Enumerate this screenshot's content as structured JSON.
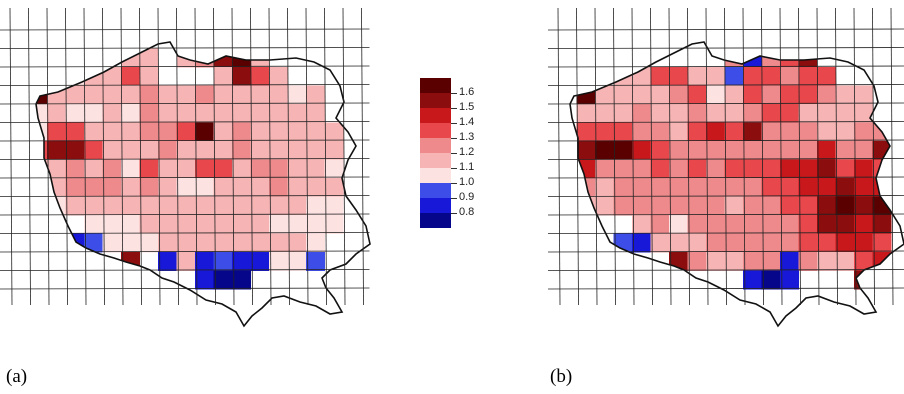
{
  "panels": [
    {
      "label": "(a)",
      "cells": [
        [
          0,
          0,
          0,
          0,
          0,
          0,
          0,
          0,
          0,
          0,
          0,
          0,
          0,
          0,
          0,
          0,
          0,
          0,
          0
        ],
        [
          0,
          0,
          0,
          0,
          0,
          0,
          2,
          2,
          0,
          2,
          3,
          6,
          7,
          2,
          0,
          0,
          0,
          0,
          0
        ],
        [
          0,
          0,
          0,
          1,
          2,
          2,
          4,
          2,
          0,
          0,
          0,
          2,
          6,
          4,
          2,
          0,
          0,
          0,
          0
        ],
        [
          0,
          7,
          2,
          2,
          2,
          2,
          2,
          3,
          2,
          2,
          3,
          2,
          2,
          2,
          2,
          1,
          2,
          0,
          0
        ],
        [
          0,
          1,
          2,
          1,
          1,
          2,
          1,
          3,
          2,
          2,
          2,
          2,
          2,
          2,
          2,
          2,
          2,
          0,
          0
        ],
        [
          0,
          1,
          4,
          4,
          2,
          2,
          2,
          3,
          3,
          4,
          7,
          2,
          3,
          2,
          2,
          2,
          2,
          2,
          0
        ],
        [
          0,
          4,
          6,
          6,
          4,
          2,
          2,
          2,
          3,
          2,
          2,
          2,
          3,
          2,
          2,
          2,
          2,
          2,
          0
        ],
        [
          0,
          2,
          2,
          3,
          2,
          3,
          1,
          4,
          2,
          2,
          4,
          4,
          2,
          3,
          3,
          2,
          2,
          1,
          0
        ],
        [
          0,
          2,
          2,
          3,
          3,
          3,
          2,
          3,
          2,
          1,
          1,
          2,
          2,
          2,
          3,
          2,
          2,
          2,
          0
        ],
        [
          0,
          1,
          1,
          2,
          2,
          2,
          2,
          2,
          2,
          2,
          2,
          2,
          2,
          2,
          2,
          2,
          1,
          1,
          0
        ],
        [
          0,
          0,
          0,
          0,
          1,
          1,
          1,
          2,
          2,
          2,
          2,
          2,
          2,
          2,
          1,
          1,
          1,
          1,
          0
        ],
        [
          0,
          0,
          0,
          -2,
          -1,
          1,
          1,
          1,
          2,
          2,
          2,
          2,
          2,
          2,
          2,
          2,
          1,
          0,
          0
        ],
        [
          0,
          0,
          0,
          0,
          0,
          0,
          6,
          0,
          -2,
          2,
          -2,
          -1,
          -2,
          -2,
          1,
          1,
          -1,
          0,
          0
        ],
        [
          0,
          0,
          0,
          0,
          0,
          0,
          0,
          0,
          0,
          0,
          -2,
          -3,
          -3,
          0,
          0,
          0,
          0,
          0,
          0
        ]
      ]
    },
    {
      "label": "(b)",
      "cells": [
        [
          0,
          0,
          0,
          0,
          0,
          0,
          0,
          0,
          0,
          0,
          0,
          0,
          0,
          0,
          0,
          0,
          0,
          0,
          0
        ],
        [
          0,
          0,
          0,
          0,
          0,
          0,
          0,
          0,
          0,
          3,
          -2,
          3,
          4,
          6,
          0,
          0,
          0,
          0,
          0
        ],
        [
          0,
          0,
          0,
          2,
          2,
          4,
          4,
          2,
          2,
          -1,
          4,
          4,
          3,
          4,
          4,
          0,
          0,
          0,
          0
        ],
        [
          0,
          7,
          2,
          2,
          2,
          2,
          3,
          4,
          1,
          2,
          4,
          3,
          4,
          4,
          3,
          2,
          2,
          0,
          0
        ],
        [
          0,
          2,
          2,
          2,
          3,
          2,
          2,
          3,
          2,
          2,
          3,
          4,
          4,
          2,
          2,
          2,
          2,
          0,
          0
        ],
        [
          0,
          4,
          4,
          4,
          3,
          3,
          2,
          4,
          5,
          4,
          6,
          3,
          3,
          3,
          2,
          2,
          3,
          3,
          0
        ],
        [
          0,
          6,
          7,
          7,
          5,
          4,
          3,
          3,
          3,
          3,
          3,
          3,
          3,
          3,
          5,
          3,
          3,
          6,
          0
        ],
        [
          0,
          5,
          3,
          3,
          3,
          4,
          3,
          4,
          3,
          4,
          4,
          4,
          5,
          5,
          6,
          4,
          5,
          4,
          0
        ],
        [
          0,
          3,
          2,
          3,
          3,
          3,
          3,
          3,
          3,
          3,
          3,
          4,
          4,
          5,
          5,
          6,
          5,
          5,
          0
        ],
        [
          0,
          2,
          2,
          3,
          3,
          3,
          3,
          3,
          3,
          2,
          3,
          3,
          4,
          4,
          6,
          7,
          6,
          7,
          0
        ],
        [
          0,
          0,
          0,
          0,
          2,
          3,
          1,
          3,
          3,
          3,
          3,
          3,
          3,
          4,
          6,
          6,
          5,
          6,
          0
        ],
        [
          0,
          0,
          0,
          -1,
          -2,
          2,
          2,
          2,
          3,
          3,
          3,
          3,
          3,
          4,
          4,
          5,
          5,
          4,
          0
        ],
        [
          0,
          0,
          0,
          0,
          0,
          0,
          6,
          3,
          2,
          2,
          3,
          3,
          -2,
          3,
          2,
          2,
          4,
          5,
          0
        ],
        [
          0,
          0,
          0,
          0,
          0,
          0,
          0,
          0,
          0,
          0,
          -2,
          -3,
          -2,
          0,
          0,
          0,
          6,
          7,
          0
        ]
      ]
    }
  ],
  "legend": {
    "entries": [
      {
        "label": "1.6",
        "color": "#5a0000"
      },
      {
        "label": "1.5",
        "color": "#8b0d0d"
      },
      {
        "label": "1.4",
        "color": "#c8181c"
      },
      {
        "label": "1.3",
        "color": "#e8484c"
      },
      {
        "label": "1.2",
        "color": "#ef8a8c"
      },
      {
        "label": "1.1",
        "color": "#f6b4b4"
      },
      {
        "label": "1.0",
        "color": "#fde2e2"
      },
      {
        "label": "0.9",
        "color": "#3d4de8"
      },
      {
        "label": "0.8",
        "color": "#1818d8"
      },
      {
        "label": "",
        "color": "#06068a"
      }
    ]
  },
  "colors": {
    "grid": "#222222",
    "border": "#111111",
    "sea": "#ffffff",
    "level_7": "#5a0000",
    "level_6": "#8b0d0d",
    "level_5": "#c8181c",
    "level_4": "#e8484c",
    "level_3": "#ef8a8c",
    "level_2": "#f6b4b4",
    "level_1": "#fde2e2",
    "level_-1": "#3d4de8",
    "level_-2": "#1818d8",
    "level_-3": "#06068a"
  }
}
